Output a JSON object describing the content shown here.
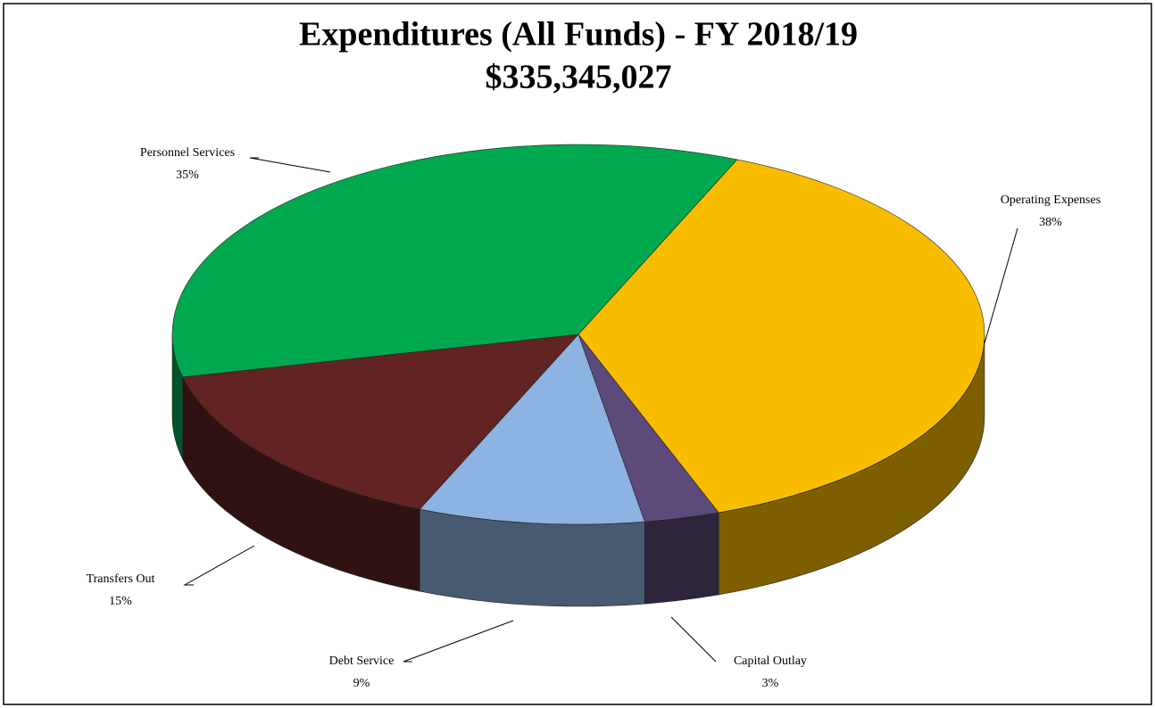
{
  "chart_data": {
    "type": "pie3d",
    "title": "Expenditures (All Funds) - FY 2018/19",
    "subtitle": "$335,345,027",
    "categories": [
      "Operating Expenses",
      "Capital Outlay",
      "Debt Service",
      "Transfers Out",
      "Personnel Services"
    ],
    "values": [
      38,
      3,
      9,
      15,
      35
    ],
    "value_labels": [
      "38%",
      "3%",
      "9%",
      "15%",
      "35%"
    ],
    "colors": [
      "#f9bd00",
      "#5b4a7a",
      "#8db3e2",
      "#622323",
      "#00a84f"
    ]
  }
}
